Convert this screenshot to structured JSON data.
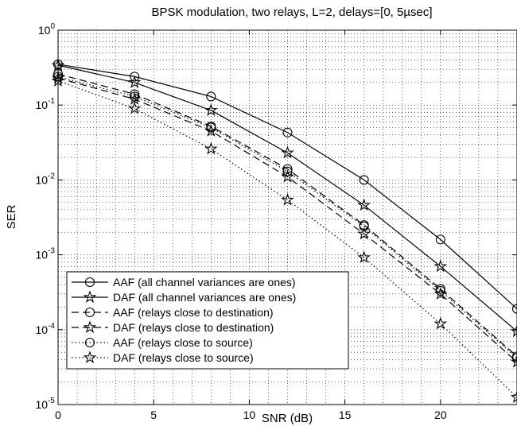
{
  "chart_data": {
    "type": "line",
    "title": "BPSK modulation, two relays, L=2, delays=[0, 5µsec]",
    "xlabel": "SNR (dB)",
    "ylabel": "SER",
    "xlim": [
      0,
      24
    ],
    "ylim": [
      1e-05,
      1
    ],
    "yscale": "log",
    "grid": true,
    "legend_position": "bottom-left",
    "x_ticks": [
      "0",
      "5",
      "10",
      "15",
      "20"
    ],
    "y_ticks": [
      {
        "base": "10",
        "exp": "-5"
      },
      {
        "base": "10",
        "exp": "-4"
      },
      {
        "base": "10",
        "exp": "-3"
      },
      {
        "base": "10",
        "exp": "-2"
      },
      {
        "base": "10",
        "exp": "-1"
      },
      {
        "base": "10",
        "exp": "0"
      }
    ],
    "x": [
      0,
      4,
      8,
      12,
      16,
      20,
      24
    ],
    "series": [
      {
        "name": "AAF (all channel variances are ones)",
        "marker": "circle",
        "line": "solid",
        "values": [
          0.35,
          0.24,
          0.13,
          0.043,
          0.01,
          0.0016,
          0.00019
        ]
      },
      {
        "name": "DAF (all channel variances are ones)",
        "marker": "star",
        "line": "solid",
        "values": [
          0.34,
          0.2,
          0.085,
          0.023,
          0.0046,
          0.0007,
          9.5e-05
        ]
      },
      {
        "name": "AAF (relays close to destination)",
        "marker": "circle",
        "line": "dashed",
        "values": [
          0.26,
          0.14,
          0.052,
          0.014,
          0.0025,
          0.00035,
          4.4e-05
        ]
      },
      {
        "name": "DAF (relays close to destination)",
        "marker": "star",
        "line": "dashed",
        "values": [
          0.23,
          0.12,
          0.045,
          0.011,
          0.0019,
          0.0003,
          3.7e-05
        ]
      },
      {
        "name": "AAF (relays close to source)",
        "marker": "circle",
        "line": "dotted",
        "values": [
          0.24,
          0.13,
          0.05,
          0.013,
          0.0024,
          0.00033,
          4.2e-05
        ]
      },
      {
        "name": "DAF (relays close to source)",
        "marker": "star",
        "line": "dotted",
        "values": [
          0.21,
          0.09,
          0.026,
          0.0054,
          0.00092,
          0.00012,
          1.25e-05
        ]
      }
    ]
  }
}
